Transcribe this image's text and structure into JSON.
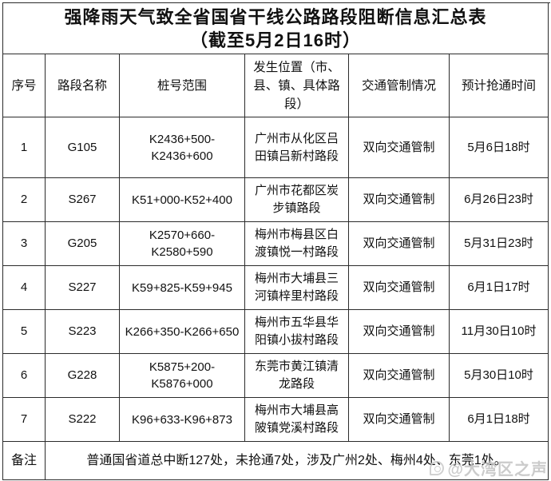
{
  "title": {
    "line1": "强降雨天气致全省国省干线公路路段阻断信息汇总表",
    "line2": "（截至5月2日16时）"
  },
  "table": {
    "headers": [
      "序号",
      "路段名称",
      "桩号范围",
      "发生位置（市、县、镇、具体路段）",
      "交通管制情况",
      "预计抢通时间"
    ],
    "rows": [
      {
        "seq": "1",
        "road": "G105",
        "stake": "K2436+500-K2436+600",
        "location": "广州市从化区吕田镇吕新村路段",
        "control": "双向交通管制",
        "eta": "5月6日18时"
      },
      {
        "seq": "2",
        "road": "S267",
        "stake": "K51+000-K52+400",
        "location": "广州市花都区炭步镇路段",
        "control": "双向交通管制",
        "eta": "6月26日23时"
      },
      {
        "seq": "3",
        "road": "G205",
        "stake": "K2570+660-K2580+590",
        "location": "梅州市梅县区白渡镇悦一村路段",
        "control": "双向交通管制",
        "eta": "5月31日23时"
      },
      {
        "seq": "4",
        "road": "S227",
        "stake": "K59+825-K59+945",
        "location": "梅州市大埔县三河镇梓里村路段",
        "control": "双向交通管制",
        "eta": "6月1日17时"
      },
      {
        "seq": "5",
        "road": "S223",
        "stake": "K266+350-K266+650",
        "location": "梅州市五华县华阳镇小拔村路段",
        "control": "双向交通管制",
        "eta": "11月30日10时"
      },
      {
        "seq": "6",
        "road": "G228",
        "stake": "K5875+200-K5876+000",
        "location": "东莞市黄江镇清龙路段",
        "control": "双向交通管制",
        "eta": "5月30日10时"
      },
      {
        "seq": "7",
        "road": "S222",
        "stake": "K96+633-K96+873",
        "location": "梅州市大埔县高陂镇党溪村路段",
        "control": "双向交通管制",
        "eta": "6月1日18时"
      }
    ],
    "remark_label": "备注",
    "remark": "普通国省道总中断127处，未抢通7处，涉及广州2处、梅州4处、东莞1处。"
  },
  "watermark": {
    "text": "@大湾区之声",
    "icon": "weibo-logo-icon"
  },
  "colors": {
    "border": "#2b2b2b",
    "text": "#111111",
    "background": "#ffffff",
    "watermark": "#c3c3c3"
  }
}
